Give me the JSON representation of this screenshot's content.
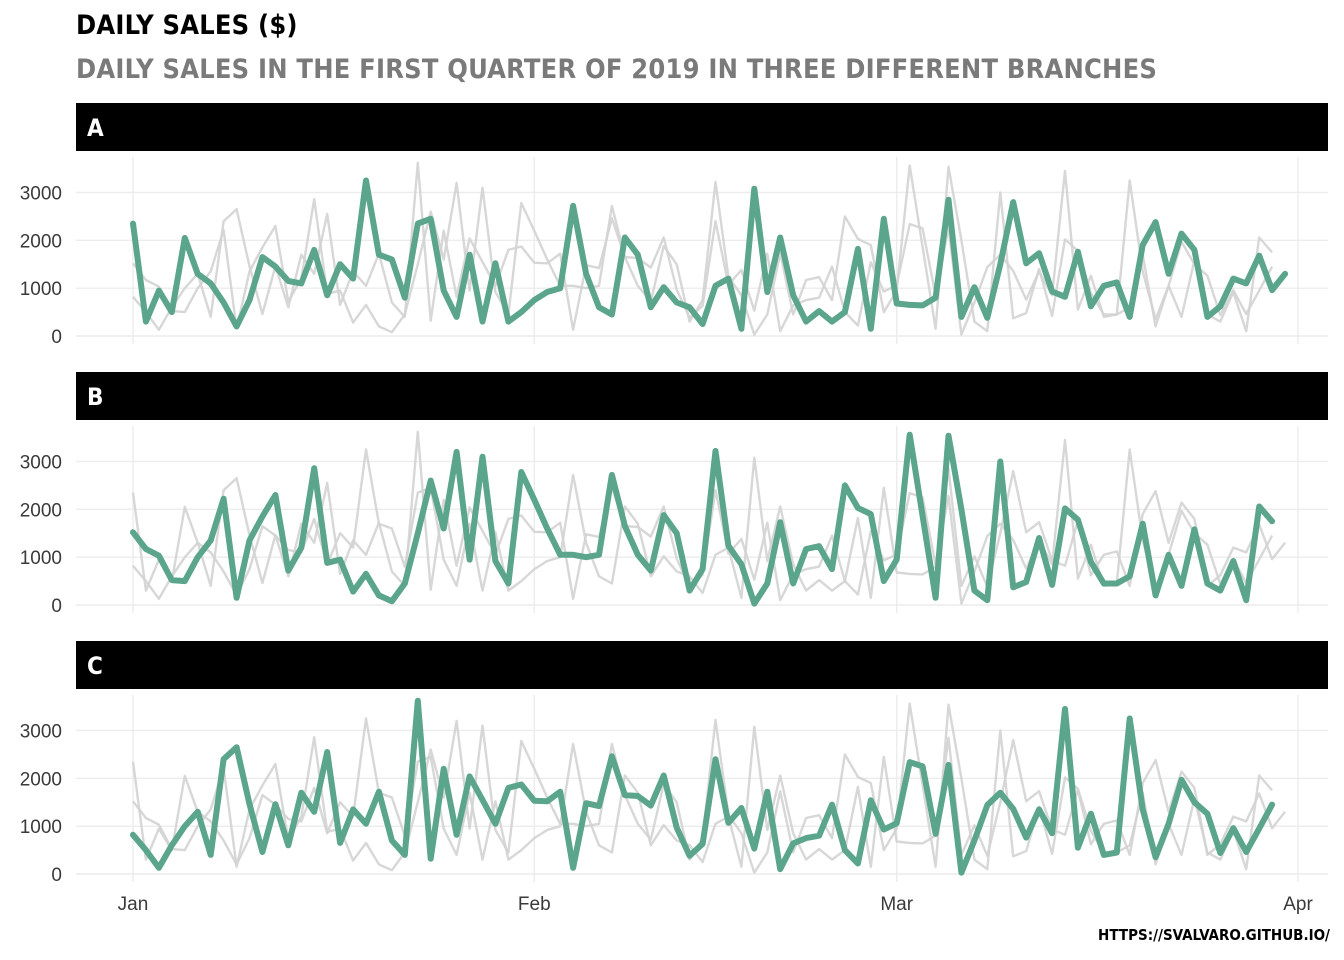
{
  "title": "DAILY SALES ($)",
  "subtitle": "DAILY SALES IN THE FIRST QUARTER OF 2019 IN THREE DIFFERENT BRANCHES",
  "caption": "HTTPS://SVALVARO.GITHUB.IO/",
  "colors": {
    "highlight": "#5aa58c",
    "context": "#d3d3d3",
    "strip": "#000000",
    "grid": "#ececec"
  },
  "chart_data": {
    "type": "line",
    "facets": [
      "A",
      "B",
      "C"
    ],
    "x_start": "2019-01-01",
    "x_ticks": [
      "Jan",
      "Feb",
      "Mar",
      "Apr"
    ],
    "y_ticks": [
      0,
      1000,
      2000,
      3000
    ],
    "ylim": [
      0,
      3700
    ],
    "series": [
      {
        "name": "A",
        "values": [
          2350,
          300,
          950,
          500,
          2050,
          1300,
          1100,
          700,
          200,
          750,
          1650,
          1450,
          1150,
          1100,
          1800,
          850,
          1500,
          1200,
          3250,
          1700,
          1600,
          800,
          2350,
          2450,
          950,
          400,
          1700,
          300,
          1520,
          300,
          500,
          750,
          920,
          1000,
          2720,
          1300,
          600,
          450,
          2060,
          1700,
          600,
          1020,
          700,
          600,
          250,
          1050,
          1200,
          150,
          3080,
          920,
          2060,
          850,
          300,
          520,
          300,
          500,
          1820,
          150,
          2450,
          680,
          650,
          640,
          800,
          2850,
          400,
          1020,
          380,
          1500,
          2800,
          1520,
          1730,
          930,
          820,
          1760,
          620,
          1050,
          1120,
          400,
          1900,
          2380,
          1300,
          2140,
          1800,
          400,
          620,
          1200,
          1100,
          1680,
          960,
          1300
        ]
      },
      {
        "name": "B",
        "values": [
          1520,
          1170,
          1030,
          520,
          500,
          1000,
          1350,
          2220,
          150,
          1350,
          1850,
          2300,
          720,
          1200,
          2860,
          880,
          950,
          280,
          650,
          200,
          80,
          450,
          1500,
          2600,
          1600,
          3200,
          950,
          3100,
          920,
          450,
          2780,
          2200,
          1600,
          1050,
          1050,
          1000,
          1050,
          2720,
          1650,
          1050,
          720,
          1880,
          1500,
          300,
          750,
          3220,
          1240,
          850,
          30,
          450,
          1730,
          450,
          1170,
          1230,
          750,
          2500,
          2030,
          1900,
          500,
          950,
          3560,
          1860,
          150,
          3540,
          2000,
          300,
          100,
          3000,
          370,
          480,
          1400,
          420,
          2020,
          1780,
          900,
          450,
          450,
          600,
          1700,
          200,
          1050,
          400,
          1580,
          450,
          300,
          920,
          100,
          2060,
          1750
        ]
      },
      {
        "name": "C",
        "values": [
          820,
          500,
          130,
          600,
          1000,
          1300,
          400,
          2400,
          2650,
          1460,
          460,
          1460,
          600,
          1700,
          1300,
          2550,
          650,
          1350,
          1050,
          1720,
          700,
          400,
          3620,
          320,
          2200,
          820,
          2040,
          1550,
          1050,
          1800,
          1870,
          1530,
          1520,
          1720,
          130,
          1480,
          1420,
          2460,
          1650,
          1630,
          1430,
          2060,
          970,
          380,
          630,
          2400,
          1070,
          1380,
          530,
          1720,
          100,
          640,
          750,
          800,
          1450,
          500,
          220,
          1540,
          930,
          1060,
          2340,
          2250,
          840,
          2280,
          30,
          700,
          1440,
          1700,
          1360,
          760,
          1350,
          850,
          3450,
          550,
          1260,
          400,
          450,
          3250,
          1350,
          350,
          1050,
          1970,
          1500,
          1260,
          440,
          960,
          460,
          950,
          1450
        ]
      }
    ]
  }
}
